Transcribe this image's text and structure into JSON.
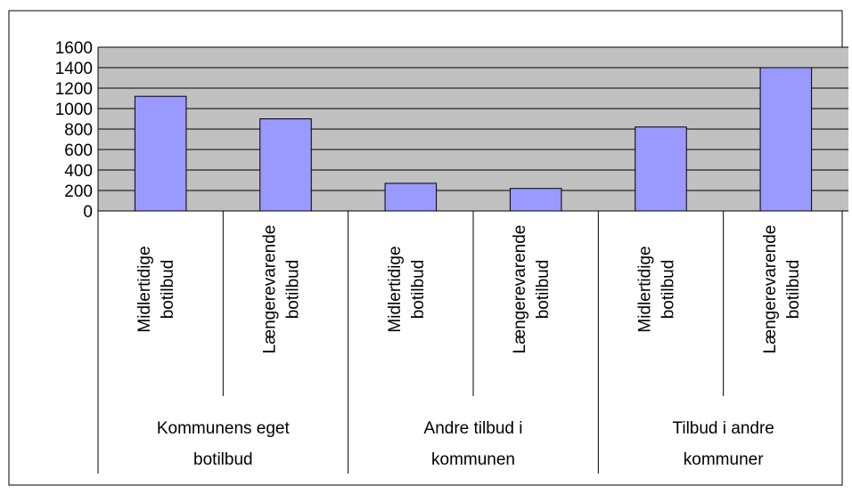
{
  "chart_data": {
    "type": "bar",
    "categories": [
      [
        "Midlertidige",
        "botilbud"
      ],
      [
        "Længerevarende",
        "botilbud"
      ],
      [
        "Midlertidige",
        "botilbud"
      ],
      [
        "Længerevarende",
        "botilbud"
      ],
      [
        "Midlertidige",
        "botilbud"
      ],
      [
        "Længerevarende",
        "botilbud"
      ]
    ],
    "groups": [
      [
        "Kommunens eget",
        "botilbud"
      ],
      [
        "Andre tilbud i",
        "kommunen"
      ],
      [
        "Tilbud i andre",
        "kommuner"
      ]
    ],
    "values": [
      1120,
      900,
      270,
      220,
      820,
      1400
    ],
    "color": "#9999ff",
    "ylim": [
      0,
      1600
    ],
    "yticks": [
      0,
      200,
      400,
      600,
      800,
      1000,
      1200,
      1400,
      1600
    ],
    "grid": true
  }
}
